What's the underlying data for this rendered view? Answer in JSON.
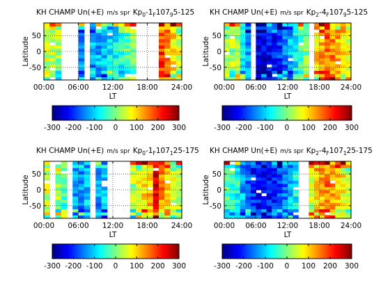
{
  "chart_data": [
    {
      "type": "heatmap",
      "title_main": "KH CHAMP Un(+E)",
      "title_units": "m/s spr",
      "title_kp": "Kp",
      "title_kp_sub": "0",
      "title_kp_rest": "-1",
      "title_f_sub": "F",
      "title_f_val": "107",
      "title_f_range_sub": "9",
      "title_f_range": "5-125",
      "ylabel": "Latitude",
      "xlabel": "LT",
      "xticks": [
        "00:00",
        "06:00",
        "12:00",
        "18:00",
        "24:00"
      ],
      "xtick_values": [
        0,
        6,
        12,
        18,
        24
      ],
      "yticks": [
        "-50",
        "0",
        "50"
      ],
      "ytick_values": [
        -50,
        0,
        50
      ],
      "xlim": [
        0,
        24
      ],
      "ylim": [
        -90,
        90
      ],
      "lt_bins": [
        0.5,
        1.5,
        2.5,
        3.5,
        4.5,
        5.5,
        6.5,
        7.5,
        8.5,
        9.5,
        10.5,
        11.5,
        12.5,
        13.5,
        14.5,
        15.5,
        16.5,
        17.5,
        18.5,
        19.5,
        20.5,
        21.5,
        22.5,
        23.5
      ],
      "lat_bins": [
        -85,
        -75,
        -65,
        -55,
        -45,
        -35,
        -25,
        -15,
        -5,
        5,
        15,
        25,
        35,
        45,
        55,
        65,
        75,
        85
      ],
      "gaps": [
        [
          3,
          5
        ],
        [
          7,
          7
        ],
        [
          16,
          18
        ],
        [
          19,
          19
        ]
      ],
      "base": [
        40,
        30,
        20,
        -30,
        -80,
        -120,
        -150,
        -140,
        -130,
        -120,
        -110,
        -90,
        -70,
        -50,
        -30,
        -10,
        60,
        120,
        170,
        200,
        190,
        140,
        100,
        60
      ],
      "colorbar": {
        "ticks": [
          "-300",
          "-200",
          "-100",
          "0",
          "100",
          "200",
          "300"
        ],
        "tick_values": [
          -300,
          -200,
          -100,
          0,
          100,
          200,
          300
        ],
        "range": [
          -300,
          300
        ]
      }
    },
    {
      "type": "heatmap",
      "title_main": "KH CHAMP Un(+E)",
      "title_units": "m/s spr",
      "title_kp": "Kp",
      "title_kp_sub": "2",
      "title_kp_rest": "-4",
      "title_f_sub": "F",
      "title_f_val": "107",
      "title_f_range_sub": "9",
      "title_f_range": "5-125",
      "ylabel": "Latitude",
      "xlabel": "LT",
      "xticks": [
        "00:00",
        "06:00",
        "12:00",
        "18:00",
        "24:00"
      ],
      "xtick_values": [
        0,
        6,
        12,
        18,
        24
      ],
      "yticks": [
        "-50",
        "0",
        "50"
      ],
      "ytick_values": [
        -50,
        0,
        50
      ],
      "xlim": [
        0,
        24
      ],
      "ylim": [
        -90,
        90
      ],
      "lt_bins": [
        0.5,
        1.5,
        2.5,
        3.5,
        4.5,
        5.5,
        6.5,
        7.5,
        8.5,
        9.5,
        10.5,
        11.5,
        12.5,
        13.5,
        14.5,
        15.5,
        16.5,
        17.5,
        18.5,
        19.5,
        20.5,
        21.5,
        22.5,
        23.5
      ],
      "lat_bins": [
        -85,
        -75,
        -65,
        -55,
        -45,
        -35,
        -25,
        -15,
        -5,
        5,
        15,
        25,
        35,
        45,
        55,
        65,
        75,
        85
      ],
      "gaps": [
        [
          5,
          5
        ],
        [
          16,
          16
        ]
      ],
      "base": [
        30,
        20,
        10,
        -60,
        -140,
        -200,
        -230,
        -240,
        -230,
        -210,
        -190,
        -160,
        -120,
        -80,
        -40,
        0,
        40,
        90,
        130,
        160,
        150,
        120,
        90,
        60
      ],
      "colorbar": {
        "ticks": [
          "-300",
          "-200",
          "-100",
          "0",
          "100",
          "200",
          "300"
        ],
        "tick_values": [
          -300,
          -200,
          -100,
          0,
          100,
          200,
          300
        ],
        "range": [
          -300,
          300
        ]
      }
    },
    {
      "type": "heatmap",
      "title_main": "KH CHAMP Un(+E)",
      "title_units": "m/s spr",
      "title_kp": "Kp",
      "title_kp_sub": "0",
      "title_kp_rest": "-1",
      "title_f_sub": "F",
      "title_f_val": "107",
      "title_f_range_sub": "1",
      "title_f_range": "25-175",
      "ylabel": "Latitude",
      "xlabel": "LT",
      "xticks": [
        "00:00",
        "06:00",
        "12:00",
        "18:00",
        "24:00"
      ],
      "xtick_values": [
        0,
        6,
        12,
        18,
        24
      ],
      "yticks": [
        "-50",
        "0",
        "50"
      ],
      "ytick_values": [
        -50,
        0,
        50
      ],
      "xlim": [
        0,
        24
      ],
      "ylim": [
        -90,
        90
      ],
      "lt_bins": [
        0.5,
        1.5,
        2.5,
        3.5,
        4.5,
        5.5,
        6.5,
        7.5,
        8.5,
        9.5,
        10.5,
        11.5,
        12.5,
        13.5,
        14.5,
        15.5,
        16.5,
        17.5,
        18.5,
        19.5,
        20.5,
        21.5,
        22.5,
        23.5
      ],
      "lat_bins": [
        -85,
        -75,
        -65,
        -55,
        -45,
        -35,
        -25,
        -15,
        -5,
        5,
        15,
        25,
        35,
        45,
        55,
        65,
        75,
        85
      ],
      "gaps": [
        [
          1,
          1
        ],
        [
          4,
          4
        ],
        [
          8,
          8
        ],
        [
          11,
          14
        ]
      ],
      "base": [
        40,
        10,
        20,
        -30,
        -80,
        -120,
        -140,
        -100,
        -150,
        -130,
        -110,
        -90,
        -60,
        -30,
        -10,
        20,
        50,
        100,
        120,
        240,
        150,
        90,
        60,
        40
      ],
      "colorbar": {
        "ticks": [
          "-300",
          "-200",
          "-100",
          "0",
          "100",
          "200",
          "300"
        ],
        "tick_values": [
          -300,
          -200,
          -100,
          0,
          100,
          200,
          300
        ],
        "range": [
          -300,
          300
        ]
      }
    },
    {
      "type": "heatmap",
      "title_main": "KH CHAMP Un(+E)",
      "title_units": "m/s spr",
      "title_kp": "Kp",
      "title_kp_sub": "2",
      "title_kp_rest": "-4",
      "title_f_sub": "F",
      "title_f_val": "107",
      "title_f_range_sub": "1",
      "title_f_range": "25-175",
      "ylabel": "Latitude",
      "xlabel": "LT",
      "xticks": [
        "00:00",
        "06:00",
        "12:00",
        "18:00",
        "24:00"
      ],
      "xtick_values": [
        0,
        6,
        12,
        18,
        24
      ],
      "yticks": [
        "-50",
        "0",
        "50"
      ],
      "ytick_values": [
        -50,
        0,
        50
      ],
      "xlim": [
        0,
        24
      ],
      "ylim": [
        -90,
        90
      ],
      "lt_bins": [
        0.5,
        1.5,
        2.5,
        3.5,
        4.5,
        5.5,
        6.5,
        7.5,
        8.5,
        9.5,
        10.5,
        11.5,
        12.5,
        13.5,
        14.5,
        15.5,
        16.5,
        17.5,
        18.5,
        19.5,
        20.5,
        21.5,
        22.5,
        23.5
      ],
      "lat_bins": [
        -85,
        -75,
        -65,
        -55,
        -45,
        -35,
        -25,
        -15,
        -5,
        5,
        15,
        25,
        35,
        45,
        55,
        65,
        75,
        85
      ],
      "gaps": [
        [
          14,
          15
        ]
      ],
      "base": [
        -20,
        -40,
        -60,
        -120,
        -170,
        -200,
        -220,
        -230,
        -220,
        -200,
        -180,
        -150,
        -110,
        -70,
        -30,
        10,
        50,
        90,
        120,
        150,
        140,
        110,
        80,
        40
      ],
      "colorbar": {
        "ticks": [
          "-300",
          "-200",
          "-100",
          "0",
          "100",
          "200",
          "300"
        ],
        "tick_values": [
          -300,
          -200,
          -100,
          0,
          100,
          200,
          300
        ],
        "range": [
          -300,
          300
        ]
      }
    }
  ]
}
